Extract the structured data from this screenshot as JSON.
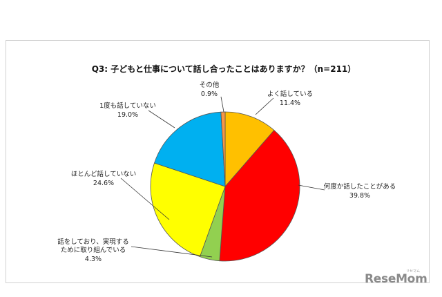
{
  "chart_data": {
    "type": "pie",
    "title": "Q3: 子どもと仕事について話し合ったことはありますか？（n=211）",
    "slices": [
      {
        "label": "よく話している",
        "value": 11.4,
        "value_label": "11.4%",
        "color": "#FFC000"
      },
      {
        "label": "何度か話したことがある",
        "value": 39.8,
        "value_label": "39.8%",
        "color": "#FF0000"
      },
      {
        "label": "話をしており、実現するために取り組んでいる",
        "label_lines": [
          "話をしており、実現する",
          "ために取り組んでいる"
        ],
        "value": 4.3,
        "value_label": "4.3%",
        "color": "#92D050"
      },
      {
        "label": "ほとんど話していない",
        "value": 24.6,
        "value_label": "24.6%",
        "color": "#FFFF00"
      },
      {
        "label": "1度も話していない",
        "value": 19.0,
        "value_label": "19.0%",
        "color": "#00B0F0"
      },
      {
        "label": "その他",
        "value": 0.9,
        "value_label": "0.9%",
        "color": "#F79646"
      }
    ],
    "start_angle_deg": 0,
    "direction": "clockwise"
  },
  "watermark": {
    "text": "ReseMom",
    "subtext": "リセマム"
  }
}
